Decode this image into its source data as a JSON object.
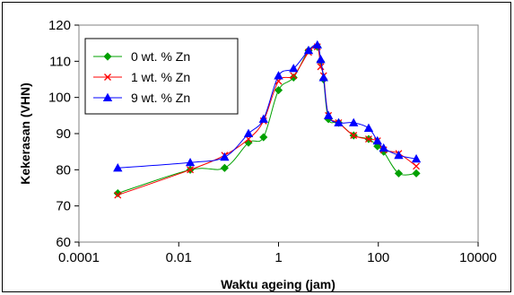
{
  "chart_data": {
    "type": "line",
    "xlabel": "Waktu ageing (jam)",
    "ylabel": "Kekerasan (VHN)",
    "x_scale": "log",
    "xlim": [
      0.0001,
      10000
    ],
    "ylim": [
      60,
      120
    ],
    "x_ticks": [
      0.0001,
      0.01,
      1,
      100,
      10000
    ],
    "x_tick_labels": [
      "0.0001",
      "0.01",
      "1",
      "100",
      "10000"
    ],
    "y_ticks": [
      60,
      70,
      80,
      90,
      100,
      110,
      120
    ],
    "y_tick_labels": [
      "60",
      "70",
      "80",
      "90",
      "100",
      "110",
      "120"
    ],
    "grid": false,
    "legend_position": "top-left",
    "series": [
      {
        "name": "0 wt. % Zn",
        "color": "#00a000",
        "marker": "diamond",
        "x": [
          0.0006,
          0.017,
          0.083,
          0.25,
          0.5,
          1,
          2,
          4,
          6,
          7,
          8,
          10,
          16,
          32,
          64,
          96,
          128,
          256,
          576
        ],
        "y": [
          73.5,
          80,
          80.5,
          87.5,
          89,
          102,
          105.5,
          113,
          114,
          110,
          105,
          94,
          93,
          89.5,
          88.5,
          86.5,
          85,
          79,
          79
        ]
      },
      {
        "name": "1 wt. % Zn",
        "color": "#ff0000",
        "marker": "x",
        "x": [
          0.0006,
          0.017,
          0.083,
          0.25,
          0.5,
          1,
          2,
          4,
          6,
          7,
          8,
          10,
          16,
          32,
          64,
          96,
          128,
          256,
          576
        ],
        "y": [
          73,
          80,
          84,
          88.5,
          93.5,
          104.5,
          106,
          112.5,
          114,
          108.5,
          106,
          95,
          93,
          89.5,
          88.5,
          88,
          85.5,
          84.5,
          81
        ]
      },
      {
        "name": "9 wt. % Zn",
        "color": "#0000ff",
        "marker": "triangle",
        "x": [
          0.0006,
          0.017,
          0.083,
          0.25,
          0.5,
          1,
          2,
          4,
          6,
          7,
          8,
          10,
          16,
          32,
          64,
          96,
          128,
          256,
          576
        ],
        "y": [
          80.5,
          82,
          83.5,
          90,
          94,
          106,
          108,
          113,
          114.5,
          110.5,
          105.5,
          95,
          93,
          93,
          91.5,
          88,
          86,
          84,
          83
        ]
      }
    ]
  }
}
